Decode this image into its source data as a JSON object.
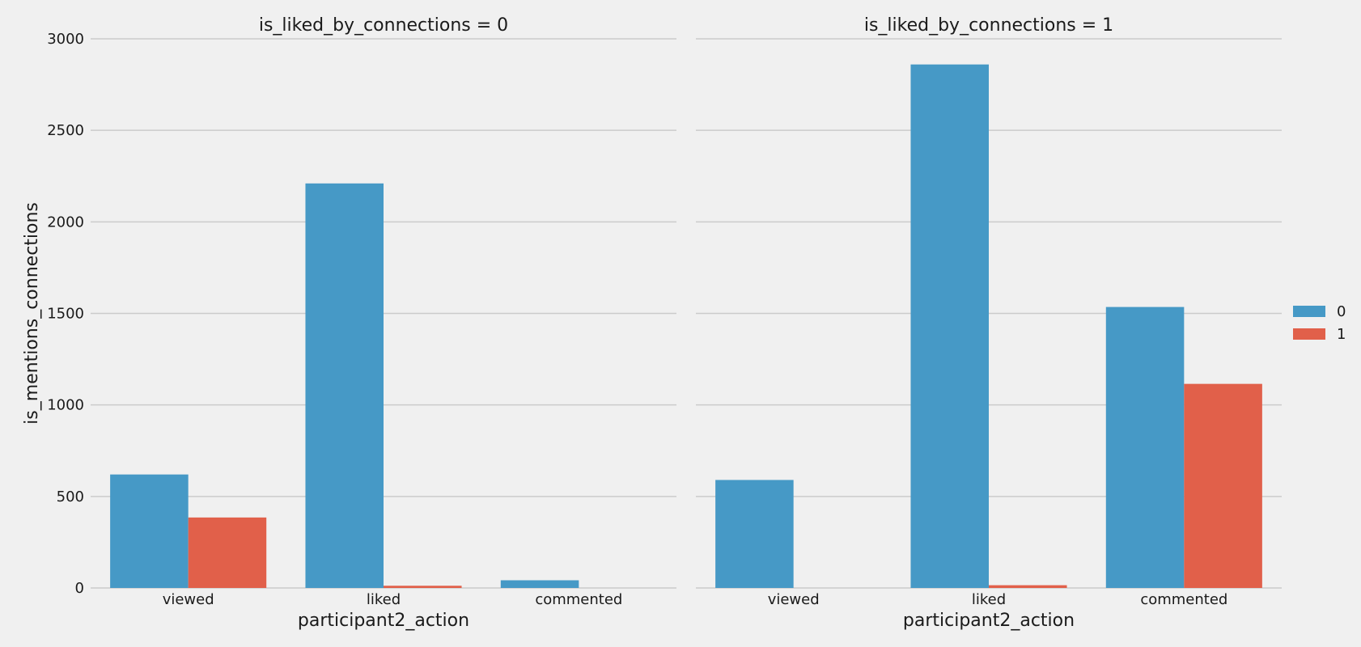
{
  "chart_data": {
    "type": "bar",
    "ylabel": "is_mentions_connections",
    "ylim": [
      0,
      3000
    ],
    "yticks": [
      0,
      500,
      1000,
      1500,
      2000,
      2500,
      3000
    ],
    "grid": true,
    "legend_position": "right",
    "hue_levels": [
      "0",
      "1"
    ],
    "colors": [
      "#4699c6",
      "#e1604a"
    ],
    "panels": [
      {
        "title": "is_liked_by_connections = 0",
        "xlabel": "participant2_action",
        "categories": [
          "viewed",
          "liked",
          "commented"
        ],
        "series": [
          {
            "name": "0",
            "values": [
              620,
              2210,
              42
            ]
          },
          {
            "name": "1",
            "values": [
              385,
              12,
              0
            ]
          }
        ]
      },
      {
        "title": "is_liked_by_connections = 1",
        "xlabel": "participant2_action",
        "categories": [
          "viewed",
          "liked",
          "commented"
        ],
        "series": [
          {
            "name": "0",
            "values": [
              590,
              2860,
              1535
            ]
          },
          {
            "name": "1",
            "values": [
              0,
              15,
              1115
            ]
          }
        ]
      }
    ]
  }
}
